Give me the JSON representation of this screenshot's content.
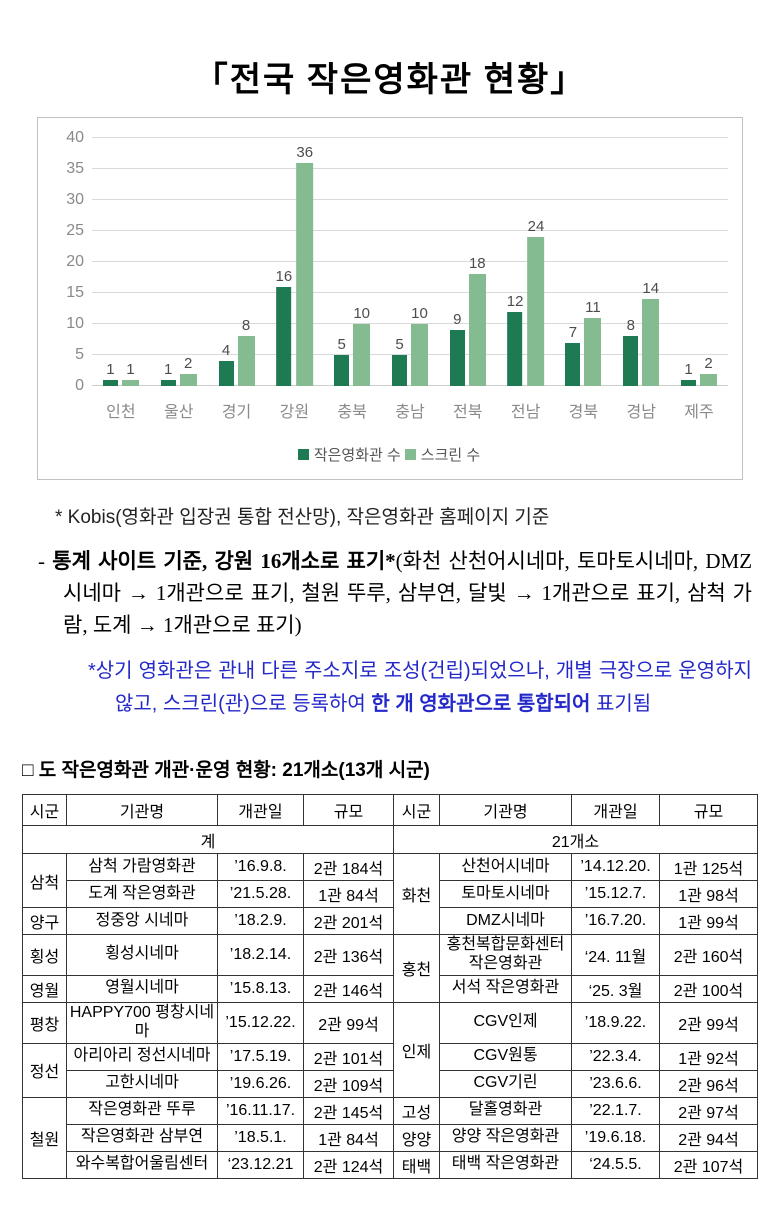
{
  "page": {
    "title": "「전국 작은영화관 현황」"
  },
  "chart_data": {
    "type": "bar",
    "title": "",
    "xlabel": "",
    "ylabel": "",
    "categories": [
      "인천",
      "울산",
      "경기",
      "강원",
      "충북",
      "충남",
      "전북",
      "전남",
      "경북",
      "경남",
      "제주"
    ],
    "series": [
      {
        "name": "작은영화관 수",
        "color": "#1d7a52",
        "values": [
          1,
          1,
          4,
          16,
          5,
          5,
          9,
          12,
          7,
          8,
          1
        ]
      },
      {
        "name": "스크린 수",
        "color": "#85bb90",
        "values": [
          1,
          2,
          8,
          36,
          10,
          10,
          18,
          24,
          11,
          14,
          2
        ]
      }
    ],
    "ylim": [
      0,
      40
    ],
    "yticks": [
      0,
      5,
      10,
      15,
      20,
      25,
      30,
      35,
      40
    ],
    "grid": true,
    "legend_position": "bottom",
    "gridline_color": "#d9d9d9",
    "axis_label_color": "#8a8a8a",
    "value_label_color": "#4d4d4d"
  },
  "notes": {
    "source": "* Kobis(영화관 입장권 통합 전산망), 작은영화관 홈페이지 기준",
    "stat_dash": "-",
    "stat_bold": "통계 사이트 기준, 강원 16개소로 표기*",
    "stat_rest": "(화천 산천어시네마, 토마토시네마, DMZ시네마 → 1개관으로 표기, 철원 뚜루, 삼부연, 달빛 → 1개관으로 표기, 삼척 가람, 도계 → 1개관으로 표기)",
    "remark_normal1": "*상기 영화관은 관내 다른 주소지로 조성(건립)되었으나, 개별 극장으로 운영하지 않고, 스크린(관)으로 등록하여 ",
    "remark_bold": "한 개 영화관으로 통합되어",
    "remark_normal2": " 표기됨",
    "remark_color": "#2428c8"
  },
  "section": {
    "heading": "□ 도 작은영화관 개관·운영 현황: 21개소(13개 시군)"
  },
  "table": {
    "headers": [
      "시군",
      "기관명",
      "개관일",
      "규모"
    ],
    "summary_left": "계",
    "summary_right": "21개소",
    "left_rows": [
      {
        "sigun": "삼척",
        "rowspan": 2,
        "name": "삼척 가람영화관",
        "date": "’16.9.8.",
        "size": "2관 184석"
      },
      {
        "name": "도계 작은영화관",
        "date": "’21.5.28.",
        "size": "1관 84석"
      },
      {
        "sigun": "양구",
        "rowspan": 1,
        "name": "정중앙 시네마",
        "date": "’18.2.9.",
        "size": "2관 201석"
      },
      {
        "sigun": "횡성",
        "rowspan": 1,
        "name": "횡성시네마",
        "date": "’18.2.14.",
        "size": "2관 136석"
      },
      {
        "sigun": "영월",
        "rowspan": 1,
        "name": "영월시네마",
        "date": "’15.8.13.",
        "size": "2관 146석"
      },
      {
        "sigun": "평창",
        "rowspan": 1,
        "name": "HAPPY700 평창시네마",
        "date": "’15.12.22.",
        "size": "2관 99석"
      },
      {
        "sigun": "정선",
        "rowspan": 2,
        "name": "아리아리 정선시네마",
        "date": "’17.5.19.",
        "size": "2관 101석"
      },
      {
        "name": "고한시네마",
        "date": "’19.6.26.",
        "size": "2관 109석"
      },
      {
        "sigun": "철원",
        "rowspan": 3,
        "name": "작은영화관 뚜루",
        "date": "’16.11.17.",
        "size": "2관 145석"
      },
      {
        "name": "작은영화관 삼부연",
        "date": "’18.5.1.",
        "size": "1관 84석"
      },
      {
        "name": "와수복합어울림센터",
        "date": "‘23.12.21",
        "size": "2관 124석"
      }
    ],
    "right_rows": [
      {
        "sigun": "화천",
        "rowspan": 3,
        "name": "산천어시네마",
        "date": "’14.12.20.",
        "size": "1관 125석"
      },
      {
        "name": "토마토시네마",
        "date": "’15.12.7.",
        "size": "1관 98석"
      },
      {
        "name": "DMZ시네마",
        "date": "’16.7.20.",
        "size": "1관 99석"
      },
      {
        "sigun": "홍천",
        "rowspan": 2,
        "name": "홍천복합문화센터\n작은영화관",
        "date": "‘24. 11월",
        "size": "2관 160석"
      },
      {
        "name": "서석 작은영화관",
        "date": "‘25. 3월",
        "size": "2관 100석"
      },
      {
        "sigun": "인제",
        "rowspan": 3,
        "name": "CGV인제",
        "date": "’18.9.22.",
        "size": "2관 99석"
      },
      {
        "name": "CGV원통",
        "date": "’22.3.4.",
        "size": "1관 92석"
      },
      {
        "name": "CGV기린",
        "date": "’23.6.6.",
        "size": "2관 96석"
      },
      {
        "sigun": "고성",
        "rowspan": 1,
        "name": "달홀영화관",
        "date": "’22.1.7.",
        "size": "2관 97석"
      },
      {
        "sigun": "양양",
        "rowspan": 1,
        "name": "양양 작은영화관",
        "date": "’19.6.18.",
        "size": "2관 94석"
      },
      {
        "sigun": "태백",
        "rowspan": 1,
        "name": "태백 작은영화관",
        "date": "‘24.5.5.",
        "size": "2관 107석"
      }
    ]
  }
}
